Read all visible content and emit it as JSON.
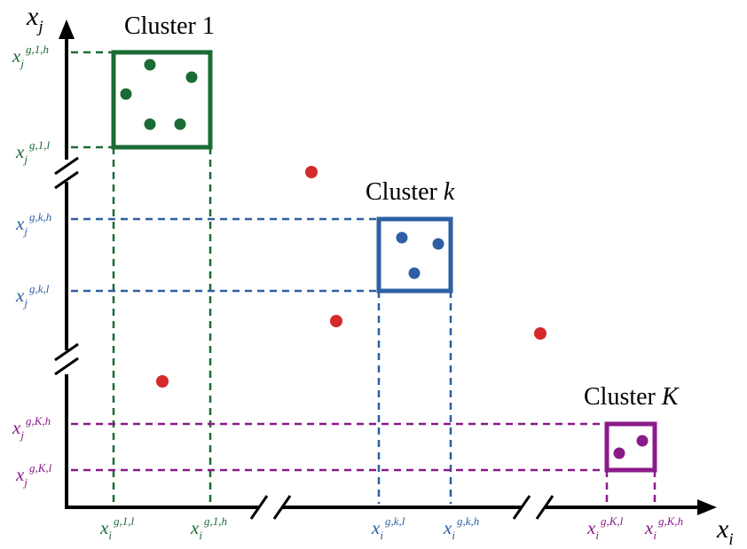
{
  "axes": {
    "y_label_main": "x",
    "y_label_sub": "j",
    "x_label_main": "x",
    "x_label_sub": "i"
  },
  "clusters": [
    {
      "title_prefix": "Cluster ",
      "title_var": "1",
      "title_var_italic": false,
      "color": "#1b6b35",
      "y_high": {
        "base": "x",
        "sub": "j",
        "sup": "g,1,h"
      },
      "y_low": {
        "base": "x",
        "sub": "j",
        "sup": "g,1,l"
      },
      "x_low": {
        "base": "x",
        "sub": "i",
        "sup": "g,1,l"
      },
      "x_high": {
        "base": "x",
        "sub": "i",
        "sup": "g,1,h"
      }
    },
    {
      "title_prefix": "Cluster ",
      "title_var": "k",
      "title_var_italic": true,
      "color": "#2e5fa3",
      "y_high": {
        "base": "x",
        "sub": "j",
        "sup": "g,k,h"
      },
      "y_low": {
        "base": "x",
        "sub": "j",
        "sup": "g,k,l"
      },
      "x_low": {
        "base": "x",
        "sub": "i",
        "sup": "g,k,l"
      },
      "x_high": {
        "base": "x",
        "sub": "i",
        "sup": "g,k,h"
      }
    },
    {
      "title_prefix": "Cluster ",
      "title_var": "K",
      "title_var_italic": true,
      "color": "#8a1a8a",
      "y_high": {
        "base": "x",
        "sub": "j",
        "sup": "g,K,h"
      },
      "y_low": {
        "base": "x",
        "sub": "j",
        "sup": "g,K,l"
      },
      "x_low": {
        "base": "x",
        "sub": "i",
        "sup": "g,K,l"
      },
      "x_high": {
        "base": "x",
        "sub": "i",
        "sup": "g,K,h"
      }
    }
  ],
  "outlier_color": "#d42a2a",
  "axis_color": "#000000"
}
